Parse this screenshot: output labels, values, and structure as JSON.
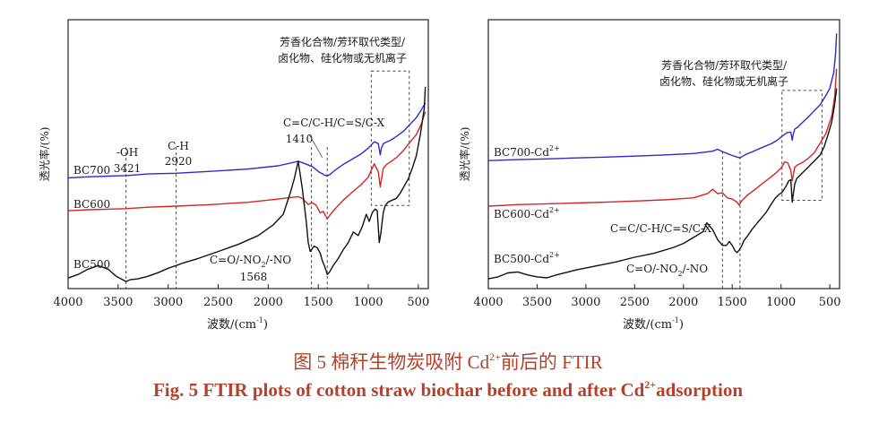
{
  "caption": {
    "zh_prefix": "图 5   棉秆生物炭吸附 Cd",
    "zh_sup": "2+",
    "zh_suffix": "前后的 FTIR",
    "en_prefix": "Fig. 5   FTIR plots of cotton straw biochar before and after Cd",
    "en_sup": "2+",
    "en_suffix": "adsorption"
  },
  "chart_data": [
    {
      "type": "line",
      "xlabel": "波数/(cm",
      "ylabel": "透光率/(%)",
      "xlim": [
        4000,
        400
      ],
      "xticks": [
        4000,
        3500,
        3000,
        2500,
        2000,
        1500,
        1000,
        500
      ],
      "colors": {
        "BC700": "#2b2bd0",
        "BC600": "#d42424",
        "BC500": "#111111"
      },
      "series": [
        {
          "name": "BC700",
          "x": [
            4000,
            3800,
            3600,
            3421,
            3200,
            2920,
            2600,
            2200,
            1900,
            1700,
            1630,
            1560,
            1490,
            1460,
            1440,
            1410,
            1380,
            1340,
            1250,
            1150,
            1070,
            1000,
            940,
            900,
            880,
            870,
            850,
            820,
            780,
            720,
            650,
            580,
            520,
            470,
            430
          ],
          "y": [
            60.6,
            61.2,
            61.6,
            61.9,
            62.8,
            63.2,
            64.2,
            65.6,
            67.4,
            70.0,
            68.6,
            67.0,
            63.8,
            63.0,
            62.2,
            61.7,
            62.6,
            64.6,
            68.2,
            71.5,
            74.2,
            77.4,
            81.0,
            80.0,
            73.6,
            77.0,
            80.0,
            80.8,
            81.8,
            84.0,
            86.8,
            91.0,
            94.6,
            99.0,
            103.0
          ]
        },
        {
          "name": "BC600",
          "x": [
            4000,
            3800,
            3600,
            3421,
            3200,
            2920,
            2600,
            2200,
            1900,
            1780,
            1700,
            1660,
            1600,
            1560,
            1520,
            1480,
            1450,
            1410,
            1380,
            1330,
            1250,
            1150,
            1070,
            1000,
            940,
            900,
            880,
            870,
            850,
            820,
            780,
            720,
            650,
            580,
            520,
            470,
            430
          ],
          "y": [
            42.0,
            42.6,
            42.9,
            43.2,
            44.0,
            44.6,
            45.4,
            46.8,
            48.6,
            49.5,
            50.0,
            49.0,
            45.6,
            46.6,
            45.0,
            40.8,
            41.6,
            37.4,
            39.8,
            43.2,
            48.0,
            53.0,
            56.8,
            61.0,
            68.6,
            64.0,
            55.4,
            59.0,
            66.0,
            68.0,
            69.6,
            72.0,
            76.0,
            81.0,
            85.0,
            91.0,
            98.0
          ]
        },
        {
          "name": "BC500",
          "x": [
            4000,
            3900,
            3800,
            3700,
            3600,
            3520,
            3421,
            3380,
            3300,
            3200,
            3100,
            3000,
            2920,
            2850,
            2700,
            2500,
            2300,
            2100,
            1950,
            1850,
            1780,
            1740,
            1700,
            1660,
            1620,
            1600,
            1580,
            1568,
            1540,
            1510,
            1480,
            1460,
            1440,
            1420,
            1410,
            1390,
            1350,
            1300,
            1250,
            1200,
            1150,
            1100,
            1060,
            1020,
            990,
            960,
            930,
            910,
            890,
            875,
            865,
            850,
            830,
            800,
            760,
            720,
            680,
            640,
            600,
            560,
            520,
            480,
            440,
            430
          ],
          "y": [
            4,
            6,
            9,
            11,
            9,
            5,
            2,
            3,
            3.5,
            5,
            7,
            9.5,
            11,
            12.5,
            15,
            19,
            23,
            28,
            34,
            40,
            52,
            60,
            70,
            55,
            36,
            24,
            19,
            20,
            22,
            21,
            18,
            14,
            11,
            8,
            6,
            7,
            11,
            15,
            20,
            24,
            30,
            28,
            33,
            40,
            36,
            41,
            43,
            42,
            24,
            29,
            34,
            41,
            45,
            47,
            48,
            49,
            52,
            56,
            60,
            66,
            73,
            85,
            100,
            112
          ]
        }
      ],
      "labels": [
        {
          "text": "BC700",
          "wn": 3980,
          "y": 60
        },
        {
          "text": "BC600",
          "wn": 3980,
          "y": 43
        },
        {
          "text": "BC500",
          "wn": 3980,
          "y": 11
        },
        {
          "text": "-OH",
          "wn": 3421,
          "y": 80
        },
        {
          "text": "3421",
          "wn": 3421,
          "y": 68
        },
        {
          "text": "C-H",
          "wn": 2920,
          "y": 82
        },
        {
          "text": "2920",
          "wn": 2920,
          "y": 70
        },
        {
          "text": "C=C/C-H/C=S/C-X",
          "wn": 1410,
          "y": 93
        },
        {
          "text": "1410",
          "wn": 1700,
          "y": 81
        },
        {
          "text": "芳香化合物/芳环取代类型/",
          "wn": 900,
          "y": 139
        },
        {
          "text": "卤化物、硅化物或无机离子",
          "wn": 900,
          "y": 127
        },
        {
          "text": "C=O/-NO",
          "wn": 1900,
          "y": 17
        },
        {
          "text": "2",
          "wn": 1900,
          "y": 17
        },
        {
          "text": "/-NO",
          "wn": 1900,
          "y": 17
        },
        {
          "text": "1568",
          "wn": 1900,
          "y": 5
        }
      ],
      "dashed_lines": [
        3421,
        2920,
        1568,
        1410
      ],
      "dashed_box": {
        "x": [
          970,
          590
        ],
        "y": [
          45,
          121
        ]
      }
    },
    {
      "type": "line",
      "xlabel": "波数/(cm",
      "ylabel": "透光率/(%)",
      "xlim": [
        4000,
        400
      ],
      "xticks": [
        4000,
        3500,
        3000,
        2500,
        2000,
        1500,
        1000,
        500
      ],
      "colors": {
        "BC700-Cd2+": "#2b2bd0",
        "BC600-Cd2+": "#d42424",
        "BC500-Cd2+": "#111111"
      },
      "series": [
        {
          "name": "BC700-Cd2+",
          "x": [
            4000,
            3700,
            3400,
            3100,
            2800,
            2500,
            2200,
            1900,
            1700,
            1650,
            1600,
            1560,
            1500,
            1450,
            1420,
            1400,
            1360,
            1300,
            1200,
            1100,
            1040,
            990,
            940,
            900,
            885,
            875,
            860,
            830,
            790,
            730,
            660,
            600,
            550,
            500,
            460,
            440,
            430
          ],
          "y": [
            63.2,
            63.7,
            64.1,
            64.6,
            65.0,
            65.5,
            66.1,
            66.8,
            68.0,
            69.0,
            67.8,
            67.0,
            65.8,
            65.0,
            64.6,
            65.2,
            66.4,
            67.6,
            69.8,
            71.8,
            73.6,
            75.6,
            77.4,
            77.8,
            73.6,
            76.6,
            79.2,
            80.2,
            82.2,
            85.0,
            88.6,
            91.6,
            95.6,
            100.0,
            108.0,
            118.0,
            128.0
          ]
        },
        {
          "name": "BC600-Cd2+",
          "x": [
            4000,
            3700,
            3400,
            3100,
            2800,
            2500,
            2200,
            1900,
            1750,
            1700,
            1650,
            1600,
            1550,
            1500,
            1450,
            1430,
            1400,
            1340,
            1260,
            1180,
            1100,
            1050,
            1000,
            960,
            930,
            900,
            885,
            875,
            860,
            830,
            790,
            730,
            660,
            600,
            540,
            480,
            450,
            430
          ],
          "y": [
            40.0,
            40.8,
            41.2,
            41.6,
            42.0,
            42.6,
            43.2,
            44.2,
            46.5,
            48.6,
            46.4,
            46.8,
            44.2,
            43.6,
            42.0,
            40.6,
            42.8,
            45.8,
            48.8,
            52.0,
            55.0,
            57.0,
            59.4,
            62.6,
            62.0,
            58.2,
            53.0,
            55.6,
            59.8,
            61.0,
            62.0,
            64.0,
            67.2,
            72.0,
            77.0,
            86.0,
            96.0,
            110.0
          ]
        },
        {
          "name": "BC500-Cd2+",
          "x": [
            4000,
            3900,
            3800,
            3700,
            3600,
            3500,
            3400,
            3300,
            3100,
            2900,
            2700,
            2500,
            2300,
            2100,
            2000,
            1900,
            1800,
            1760,
            1700,
            1650,
            1600,
            1560,
            1530,
            1500,
            1470,
            1450,
            1430,
            1400,
            1380,
            1340,
            1300,
            1250,
            1200,
            1150,
            1100,
            1060,
            1020,
            990,
            950,
            920,
            900,
            885,
            875,
            860,
            840,
            800,
            760,
            720,
            680,
            640,
            600,
            560,
            520,
            480,
            450,
            430
          ],
          "y": [
            3,
            4,
            6,
            6.5,
            5,
            4,
            3.5,
            5,
            7.5,
            9.5,
            11.5,
            14,
            16,
            19,
            21,
            24,
            27,
            31.5,
            28,
            23,
            20,
            20,
            22,
            20,
            17.2,
            16.4,
            17.5,
            20,
            22.5,
            25,
            28,
            31,
            34,
            37,
            41,
            44,
            46,
            47,
            50,
            53,
            53.5,
            42,
            46,
            51,
            54,
            56,
            58,
            60,
            62,
            64,
            66,
            70,
            76,
            83,
            92,
            100
          ]
        }
      ],
      "labels": [
        {
          "text": "BC700-Cd",
          "wn": 3950,
          "y": 72
        },
        {
          "text": "BC600-Cd",
          "wn": 3950,
          "y": 50
        },
        {
          "text": "BC500-Cd",
          "wn": 3950,
          "y": 25
        },
        {
          "text": "C=C/C-H/C=S/C-X",
          "wn": 2100,
          "y": 38
        },
        {
          "text": "C=O/-NO",
          "wn": 1750,
          "y": 10
        },
        {
          "text": "2",
          "wn": 1750,
          "y": 10
        },
        {
          "text": "/-NO",
          "wn": 1750,
          "y": 10
        },
        {
          "text": "芳香化合物/芳环取代类型/",
          "wn": 1100,
          "y": 122
        },
        {
          "text": "卤化物、硅化物或无机离子",
          "wn": 1100,
          "y": 110
        },
        {
          "text": "2+",
          "wn": 0,
          "y": 0
        }
      ],
      "dashed_lines": [
        1600,
        1420
      ],
      "dashed_box": {
        "x": [
          990,
          580
        ],
        "y": [
          43,
          99
        ]
      }
    }
  ]
}
